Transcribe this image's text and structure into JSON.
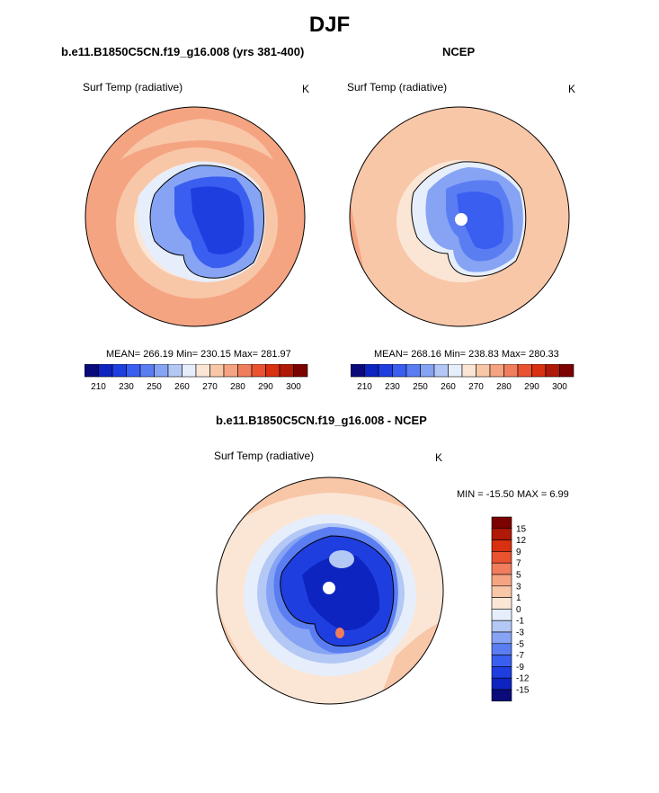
{
  "page": {
    "title": "DJF"
  },
  "panels": [
    {
      "subtitle": "b.e11.B1850C5CN.f19_g16.008 (yrs 381-400)",
      "variable": "Surf Temp (radiative)",
      "units": "K",
      "stats": "MEAN= 266.19  Min= 230.15  Max= 281.97"
    },
    {
      "subtitle": "NCEP",
      "variable": "Surf Temp (radiative)",
      "units": "K",
      "stats": "MEAN= 268.16  Min= 238.83  Max= 280.33"
    }
  ],
  "diff_panel": {
    "subtitle": "b.e11.B1850C5CN.f19_g16.008 - NCEP",
    "variable": "Surf Temp (radiative)",
    "units": "K",
    "minmax": "MIN = -15.50 MAX =   6.99"
  },
  "abs_colorbar": {
    "colors": [
      "#0a0a7a",
      "#0d24c0",
      "#1f3ee0",
      "#3a5ef0",
      "#5a7ef2",
      "#86a4f3",
      "#b4c8f5",
      "#e6eefc",
      "#fbe6d6",
      "#f8c7a8",
      "#f5a482",
      "#f07e5c",
      "#ea5230",
      "#d83010",
      "#b01808",
      "#7c0202"
    ],
    "tick_labels": [
      "210",
      "230",
      "250",
      "260",
      "270",
      "280",
      "290",
      "300"
    ]
  },
  "diff_colorbar": {
    "colors": [
      "#7c0202",
      "#b01808",
      "#d83010",
      "#ea5230",
      "#f07e5c",
      "#f5a482",
      "#f8c7a8",
      "#fbe6d6",
      "#e6eefc",
      "#b4c8f5",
      "#86a4f3",
      "#5a7ef2",
      "#3a5ef0",
      "#1f3ee0",
      "#0d24c0",
      "#0a0a7a"
    ],
    "tick_labels": [
      "15",
      "12",
      "9",
      "7",
      "5",
      "3",
      "1",
      "0",
      "-1",
      "-3",
      "-5",
      "-7",
      "-9",
      "-12",
      "-15"
    ]
  },
  "map_colors": {
    "warm_outer": "#f5a482",
    "warm_mid": "#f8c7a8",
    "warm_light": "#fbe6d6",
    "cool_light": "#e6eefc",
    "cool1": "#b4c8f5",
    "cool2": "#86a4f3",
    "cool3": "#5a7ef2",
    "cool4": "#3a5ef0",
    "cool5": "#1f3ee0",
    "cool6": "#0d24c0",
    "warm_strong": "#f07e5c"
  }
}
